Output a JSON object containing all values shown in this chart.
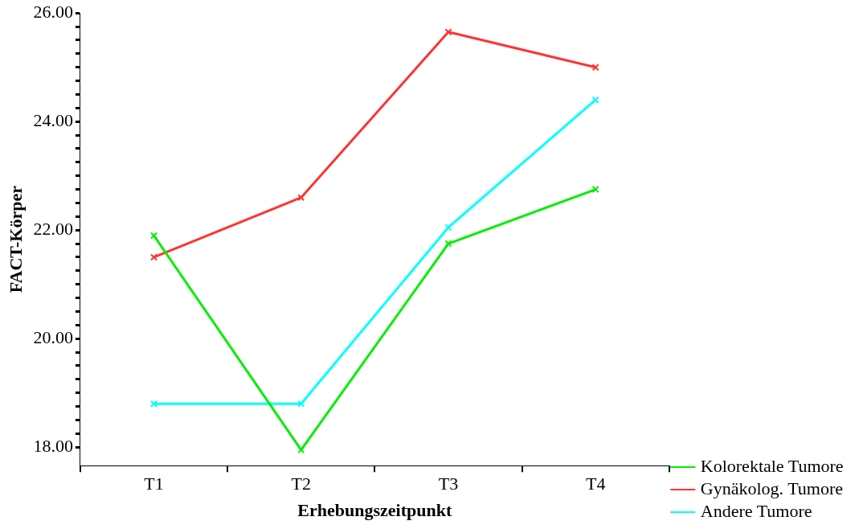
{
  "chart_data": {
    "type": "line",
    "xlabel": "Erhebungszeitpunkt",
    "ylabel": "FACT-Körper",
    "categories": [
      "T1",
      "T2",
      "T3",
      "T4"
    ],
    "series": [
      {
        "name": "Kolorektale Tumore",
        "color": "#00ee00",
        "values": [
          21.9,
          17.95,
          21.75,
          22.75
        ]
      },
      {
        "name": "Gynäkolog. Tumore",
        "color": "#ff3333",
        "values": [
          21.5,
          22.6,
          25.65,
          25.0
        ]
      },
      {
        "name": "Andere Tumore",
        "color": "#00ffff",
        "values": [
          18.8,
          18.8,
          22.05,
          24.4
        ]
      }
    ],
    "ylim": [
      17.66,
      26.0
    ],
    "yticks": [
      {
        "value": 18,
        "label": "18.00"
      },
      {
        "value": 18.25,
        "label": null
      },
      {
        "value": 18.5,
        "label": null
      },
      {
        "value": 18.75,
        "label": null
      },
      {
        "value": 19,
        "label": null
      },
      {
        "value": 19.25,
        "label": null
      },
      {
        "value": 19.5,
        "label": null
      },
      {
        "value": 19.75,
        "label": null
      },
      {
        "value": 20,
        "label": "20.00"
      },
      {
        "value": 20.25,
        "label": null
      },
      {
        "value": 20.5,
        "label": null
      },
      {
        "value": 20.75,
        "label": null
      },
      {
        "value": 21,
        "label": null
      },
      {
        "value": 21.25,
        "label": null
      },
      {
        "value": 21.5,
        "label": null
      },
      {
        "value": 21.75,
        "label": null
      },
      {
        "value": 22,
        "label": "22.00"
      },
      {
        "value": 22.25,
        "label": null
      },
      {
        "value": 22.5,
        "label": null
      },
      {
        "value": 22.75,
        "label": null
      },
      {
        "value": 23,
        "label": null
      },
      {
        "value": 23.25,
        "label": null
      },
      {
        "value": 23.5,
        "label": null
      },
      {
        "value": 23.75,
        "label": null
      },
      {
        "value": 24,
        "label": "24.00"
      },
      {
        "value": 24.25,
        "label": null
      },
      {
        "value": 24.5,
        "label": null
      },
      {
        "value": 24.75,
        "label": null
      },
      {
        "value": 25,
        "label": null
      },
      {
        "value": 25.25,
        "label": null
      },
      {
        "value": 25.5,
        "label": null
      },
      {
        "value": 25.75,
        "label": null
      },
      {
        "value": 26,
        "label": "26.00"
      }
    ],
    "grid": false,
    "legend": "right",
    "marker": "cross",
    "line_style": "solid"
  }
}
